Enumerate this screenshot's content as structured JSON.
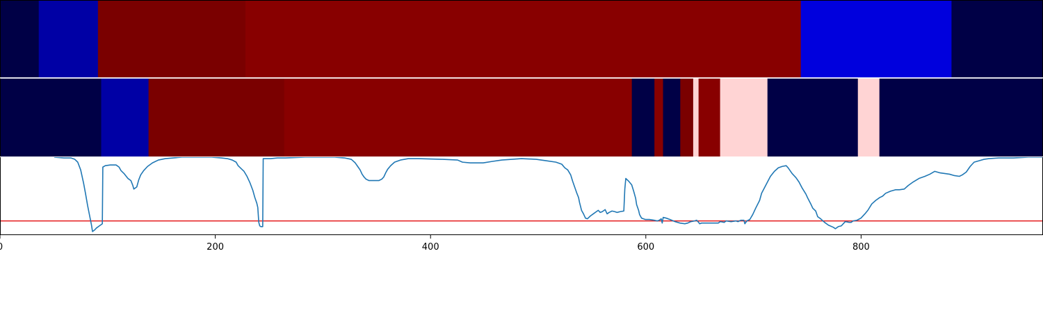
{
  "chart_data": {
    "type": "heatmap",
    "x_range": [
      0,
      969
    ],
    "x_ticks": [
      {
        "value": 0,
        "label": "0"
      },
      {
        "value": 200,
        "label": "200"
      },
      {
        "value": 400,
        "label": "400"
      },
      {
        "value": 600,
        "label": "600"
      },
      {
        "value": 800,
        "label": "800"
      }
    ],
    "segment_rows": [
      {
        "segments": [
          {
            "start": 0,
            "end": 36,
            "color": "#000046"
          },
          {
            "start": 36,
            "end": 91,
            "color": "#0000a5"
          },
          {
            "start": 91,
            "end": 228,
            "color": "#7a0000"
          },
          {
            "start": 228,
            "end": 744,
            "color": "#880000"
          },
          {
            "start": 744,
            "end": 884,
            "color": "#0000dd"
          },
          {
            "start": 884,
            "end": 969,
            "color": "#000046"
          }
        ]
      },
      {
        "segments": [
          {
            "start": 0,
            "end": 94,
            "color": "#000046"
          },
          {
            "start": 94,
            "end": 138,
            "color": "#0000a5"
          },
          {
            "start": 138,
            "end": 264,
            "color": "#7a0000"
          },
          {
            "start": 264,
            "end": 587,
            "color": "#880000"
          },
          {
            "start": 587,
            "end": 608,
            "color": "#000046"
          },
          {
            "start": 608,
            "end": 616,
            "color": "#880000"
          },
          {
            "start": 616,
            "end": 632,
            "color": "#000046"
          },
          {
            "start": 632,
            "end": 644,
            "color": "#7a0000"
          },
          {
            "start": 644,
            "end": 649,
            "color": "#ffd4d4"
          },
          {
            "start": 649,
            "end": 669,
            "color": "#880000"
          },
          {
            "start": 669,
            "end": 713,
            "color": "#ffd4d4"
          },
          {
            "start": 713,
            "end": 797,
            "color": "#000046"
          },
          {
            "start": 797,
            "end": 817,
            "color": "#ffd4d4"
          },
          {
            "start": 817,
            "end": 969,
            "color": "#000046"
          }
        ]
      }
    ],
    "line": {
      "color": "#1f77b4",
      "y_range": [
        -0.1,
        1.0
      ],
      "points": [
        [
          55,
          1.0
        ],
        [
          65,
          0.99
        ],
        [
          72,
          0.99
        ],
        [
          76,
          0.97
        ],
        [
          79,
          0.93
        ],
        [
          82,
          0.82
        ],
        [
          85,
          0.63
        ],
        [
          87,
          0.48
        ],
        [
          89,
          0.32
        ],
        [
          91,
          0.18
        ],
        [
          93,
          0.04
        ],
        [
          94,
          -0.05
        ],
        [
          96,
          -0.03
        ],
        [
          98,
          0.0
        ],
        [
          101,
          0.03
        ],
        [
          103,
          0.05
        ],
        [
          104,
          0.06
        ],
        [
          104.5,
          0.86
        ],
        [
          107,
          0.88
        ],
        [
          112,
          0.89
        ],
        [
          118,
          0.89
        ],
        [
          121,
          0.86
        ],
        [
          123,
          0.81
        ],
        [
          126,
          0.77
        ],
        [
          130,
          0.7
        ],
        [
          133,
          0.67
        ],
        [
          135,
          0.6
        ],
        [
          136,
          0.55
        ],
        [
          139,
          0.58
        ],
        [
          141,
          0.68
        ],
        [
          143,
          0.75
        ],
        [
          146,
          0.81
        ],
        [
          150,
          0.87
        ],
        [
          155,
          0.92
        ],
        [
          161,
          0.96
        ],
        [
          168,
          0.98
        ],
        [
          176,
          0.99
        ],
        [
          185,
          1.0
        ],
        [
          200,
          1.0
        ],
        [
          215,
          1.0
        ],
        [
          225,
          0.99
        ],
        [
          231,
          0.98
        ],
        [
          236,
          0.96
        ],
        [
          240,
          0.93
        ],
        [
          242,
          0.88
        ],
        [
          245,
          0.84
        ],
        [
          248,
          0.8
        ],
        [
          251,
          0.73
        ],
        [
          254,
          0.64
        ],
        [
          257,
          0.53
        ],
        [
          259,
          0.43
        ],
        [
          261,
          0.35
        ],
        [
          262,
          0.29
        ],
        [
          263,
          0.08
        ],
        [
          264,
          0.03
        ],
        [
          265,
          0.02
        ],
        [
          267,
          0.02
        ],
        [
          267.5,
          0.98
        ],
        [
          270,
          0.98
        ],
        [
          275,
          0.98
        ],
        [
          282,
          0.99
        ],
        [
          290,
          0.99
        ],
        [
          310,
          1.0
        ],
        [
          340,
          1.0
        ],
        [
          350,
          0.99
        ],
        [
          357,
          0.97
        ],
        [
          361,
          0.92
        ],
        [
          364,
          0.86
        ],
        [
          366,
          0.82
        ],
        [
          368,
          0.76
        ],
        [
          370,
          0.72
        ],
        [
          372,
          0.69
        ],
        [
          375,
          0.67
        ],
        [
          380,
          0.67
        ],
        [
          385,
          0.67
        ],
        [
          388,
          0.69
        ],
        [
          390,
          0.72
        ],
        [
          392,
          0.78
        ],
        [
          394,
          0.83
        ],
        [
          397,
          0.88
        ],
        [
          401,
          0.93
        ],
        [
          407,
          0.96
        ],
        [
          415,
          0.98
        ],
        [
          425,
          0.98
        ],
        [
          450,
          0.97
        ],
        [
          465,
          0.96
        ],
        [
          470,
          0.93
        ],
        [
          478,
          0.92
        ],
        [
          485,
          0.92
        ],
        [
          491,
          0.92
        ],
        [
          500,
          0.94
        ],
        [
          510,
          0.96
        ],
        [
          520,
          0.97
        ],
        [
          530,
          0.98
        ],
        [
          545,
          0.97
        ],
        [
          555,
          0.95
        ],
        [
          565,
          0.93
        ],
        [
          571,
          0.9
        ],
        [
          574,
          0.85
        ],
        [
          577,
          0.82
        ],
        [
          580,
          0.75
        ],
        [
          582,
          0.66
        ],
        [
          584,
          0.58
        ],
        [
          586,
          0.5
        ],
        [
          588,
          0.43
        ],
        [
          589,
          0.36
        ],
        [
          591,
          0.25
        ],
        [
          593,
          0.2
        ],
        [
          595,
          0.14
        ],
        [
          597,
          0.13
        ],
        [
          600,
          0.17
        ],
        [
          603,
          0.2
        ],
        [
          606,
          0.23
        ],
        [
          608,
          0.25
        ],
        [
          610,
          0.22
        ],
        [
          612,
          0.23
        ],
        [
          615,
          0.26
        ],
        [
          617,
          0.2
        ],
        [
          619,
          0.22
        ],
        [
          622,
          0.24
        ],
        [
          625,
          0.23
        ],
        [
          627,
          0.22
        ],
        [
          630,
          0.23
        ],
        [
          634,
          0.24
        ],
        [
          635,
          0.55
        ],
        [
          636,
          0.7
        ],
        [
          639,
          0.66
        ],
        [
          642,
          0.61
        ],
        [
          644,
          0.52
        ],
        [
          646,
          0.42
        ],
        [
          647,
          0.33
        ],
        [
          649,
          0.25
        ],
        [
          650,
          0.19
        ],
        [
          652,
          0.14
        ],
        [
          654,
          0.13
        ],
        [
          656,
          0.12
        ],
        [
          660,
          0.12
        ],
        [
          665,
          0.11
        ],
        [
          668,
          0.1
        ],
        [
          670,
          0.11
        ],
        [
          672,
          0.13
        ],
        [
          673,
          0.07
        ],
        [
          674,
          0.15
        ],
        [
          677,
          0.14
        ],
        [
          681,
          0.12
        ],
        [
          686,
          0.09
        ],
        [
          691,
          0.07
        ],
        [
          696,
          0.06
        ],
        [
          699,
          0.07
        ],
        [
          702,
          0.09
        ],
        [
          706,
          0.1
        ],
        [
          708,
          0.11
        ],
        [
          710,
          0.08
        ],
        [
          711,
          0.06
        ],
        [
          713,
          0.07
        ],
        [
          720,
          0.07
        ],
        [
          730,
          0.07
        ],
        [
          732,
          0.09
        ],
        [
          736,
          0.08
        ],
        [
          738,
          0.1
        ],
        [
          743,
          0.09
        ],
        [
          748,
          0.1
        ],
        [
          750,
          0.09
        ],
        [
          753,
          0.11
        ],
        [
          756,
          0.11
        ],
        [
          757,
          0.06
        ],
        [
          759,
          0.1
        ],
        [
          762,
          0.12
        ],
        [
          765,
          0.19
        ],
        [
          768,
          0.28
        ],
        [
          772,
          0.39
        ],
        [
          774,
          0.49
        ],
        [
          777,
          0.57
        ],
        [
          780,
          0.65
        ],
        [
          783,
          0.73
        ],
        [
          787,
          0.8
        ],
        [
          791,
          0.85
        ],
        [
          795,
          0.87
        ],
        [
          799,
          0.88
        ],
        [
          801,
          0.85
        ],
        [
          805,
          0.77
        ],
        [
          809,
          0.71
        ],
        [
          812,
          0.65
        ],
        [
          815,
          0.57
        ],
        [
          819,
          0.48
        ],
        [
          821,
          0.42
        ],
        [
          824,
          0.34
        ],
        [
          826,
          0.28
        ],
        [
          829,
          0.24
        ],
        [
          831,
          0.16
        ],
        [
          834,
          0.13
        ],
        [
          838,
          0.08
        ],
        [
          842,
          0.04
        ],
        [
          847,
          0.01
        ],
        [
          849,
          -0.01
        ],
        [
          852,
          0.02
        ],
        [
          855,
          0.03
        ],
        [
          857,
          0.06
        ],
        [
          859,
          0.09
        ],
        [
          863,
          0.08
        ],
        [
          865,
          0.08
        ],
        [
          867,
          0.1
        ],
        [
          871,
          0.11
        ],
        [
          875,
          0.14
        ],
        [
          879,
          0.2
        ],
        [
          882,
          0.25
        ],
        [
          886,
          0.34
        ],
        [
          890,
          0.39
        ],
        [
          894,
          0.43
        ],
        [
          897,
          0.45
        ],
        [
          900,
          0.49
        ],
        [
          905,
          0.52
        ],
        [
          910,
          0.54
        ],
        [
          914,
          0.54
        ],
        [
          919,
          0.55
        ],
        [
          923,
          0.6
        ],
        [
          928,
          0.65
        ],
        [
          934,
          0.7
        ],
        [
          940,
          0.73
        ],
        [
          945,
          0.76
        ],
        [
          950,
          0.8
        ],
        [
          955,
          0.78
        ],
        [
          960,
          0.77
        ],
        [
          965,
          0.76
        ],
        [
          970,
          0.74
        ],
        [
          975,
          0.73
        ],
        [
          978,
          0.75
        ],
        [
          982,
          0.79
        ],
        [
          986,
          0.87
        ],
        [
          990,
          0.93
        ],
        [
          995,
          0.95
        ],
        [
          1000,
          0.97
        ],
        [
          1005,
          0.98
        ],
        [
          1015,
          0.99
        ],
        [
          1030,
          0.99
        ],
        [
          1045,
          1.0
        ],
        [
          1060,
          1.0
        ]
      ]
    },
    "threshold": {
      "y": 0.1,
      "color": "#e41a1c"
    }
  }
}
